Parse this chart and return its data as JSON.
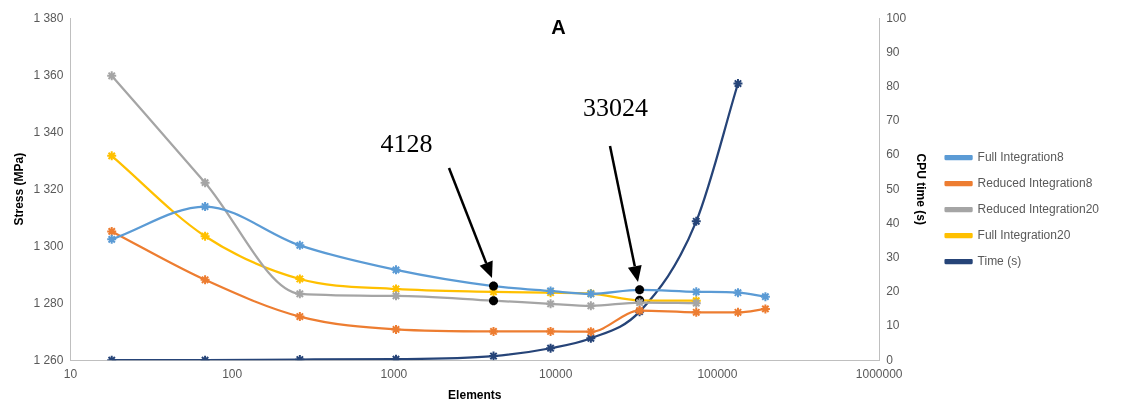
{
  "chart_data": {
    "type": "line",
    "title": "A",
    "xlabel": "Elements",
    "ylabel": "Stress (MPa)",
    "y2label": "CPU time (s)",
    "log": "x",
    "grid": false,
    "legend": "right",
    "marker": "cross",
    "line_style": "solid",
    "xlim": [
      10,
      1000000
    ],
    "xticks": [
      10,
      100,
      1000,
      10000,
      100000,
      1000000
    ],
    "ylim": [
      1260,
      1380
    ],
    "yticks": [
      {
        "value": 1260,
        "label": "1 260"
      },
      {
        "value": 1280,
        "label": "1 280"
      },
      {
        "value": 1300,
        "label": "1 300"
      },
      {
        "value": 1320,
        "label": "1 320"
      },
      {
        "value": 1340,
        "label": "1 340"
      },
      {
        "value": 1360,
        "label": "1 360"
      },
      {
        "value": 1380,
        "label": "1 380"
      }
    ],
    "y2lim": [
      0,
      100
    ],
    "y2ticks": [
      0,
      10,
      20,
      30,
      40,
      50,
      60,
      70,
      80,
      90,
      100
    ],
    "x": [
      18,
      68,
      262,
      1030,
      4128,
      9300,
      16500,
      33024,
      74000,
      134000,
      198000
    ],
    "series": [
      {
        "name": "Full Integration8",
        "color": "#5b9bd5",
        "colors": [
          "#5b9bd5",
          "#5b9bd5",
          "#5b9bd5",
          "#5b9bd5",
          "#000000",
          "#5b9bd5",
          "#5b9bd5",
          "#000000",
          "#5b9bd5",
          "#5b9bd5",
          "#5b9bd5"
        ],
        "values": [
          1302.4,
          1313.9,
          1300.3,
          1291.7,
          1286,
          1284.3,
          1283.3,
          1284.7,
          1284,
          1283.7,
          1282.3
        ]
      },
      {
        "name": "Reduced Integration8",
        "color": "#ed7d31",
        "values": [
          1305.2,
          1288.2,
          1275.3,
          1270.8,
          1270.1,
          1270.1,
          1270,
          1277.4,
          1276.8,
          1276.8,
          1278
        ]
      },
      {
        "name": "Reduced Integration20",
        "color": "#a5a5a5",
        "colors": [
          "#a5a5a5",
          "#a5a5a5",
          "#a5a5a5",
          "#a5a5a5",
          "#000000",
          "#a5a5a5",
          "#a5a5a5",
          "#a5a5a5",
          "#a5a5a5",
          null,
          null
        ],
        "values": [
          1359.8,
          1322.3,
          1283.3,
          1282.6,
          1280.9,
          1279.8,
          1279.1,
          1280.2,
          1280,
          null,
          null
        ]
      },
      {
        "name": "Full Integration20",
        "color": "#ffc000",
        "colors": [
          "#ffc000",
          "#ffc000",
          "#ffc000",
          "#ffc000",
          "#ffc000",
          "#ffc000",
          "#ffc000",
          "#000000",
          "#ffc000",
          null,
          null
        ],
        "values": [
          1331.7,
          1303.5,
          1288.5,
          1285,
          1284,
          1283.7,
          1283.4,
          1281,
          1280.9,
          null,
          null
        ]
      },
      {
        "name": "Time (s)",
        "color": "#264478",
        "axis": "y2",
        "values": [
          0,
          0,
          0.2,
          0.3,
          1.2,
          3.5,
          6.4,
          14.2,
          40.6,
          80.9,
          null
        ]
      }
    ],
    "annotations": [
      "4128",
      "33024"
    ]
  }
}
